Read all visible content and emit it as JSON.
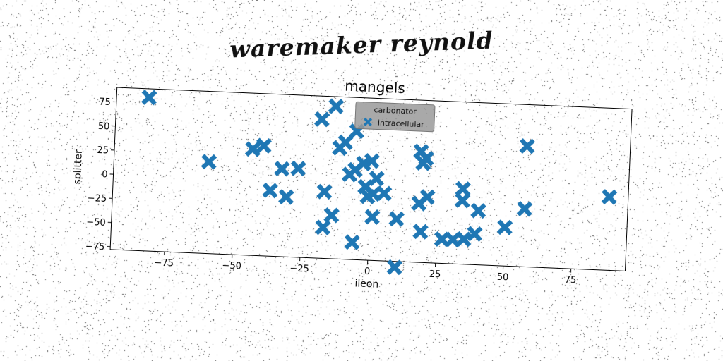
{
  "banner_title": "waremaker reynold",
  "colors": {
    "marker": "#1f77b4",
    "legend_bg": "#9a9a9a",
    "axis": "#000000"
  },
  "chart_data": {
    "type": "scatter",
    "title": "mangels",
    "xlabel": "ileon",
    "ylabel": "splitter",
    "xlim": [
      -95,
      95
    ],
    "ylim": [
      -78,
      90
    ],
    "xticks": [
      -75,
      -50,
      -25,
      0,
      25,
      50,
      75
    ],
    "yticks": [
      -75,
      -50,
      -25,
      0,
      25,
      50,
      75
    ],
    "grid": false,
    "legend": {
      "title": "carbonator",
      "placement": "top-center"
    },
    "series": [
      {
        "name": "intracellular",
        "marker": "X",
        "color": "#1f77b4",
        "points": [
          [
            -83,
            81
          ],
          [
            -14,
            80
          ],
          [
            -19,
            66
          ],
          [
            -6,
            55
          ],
          [
            -10,
            43
          ],
          [
            -12,
            37
          ],
          [
            -44,
            32
          ],
          [
            -40,
            36
          ],
          [
            -60,
            17
          ],
          [
            -33,
            13
          ],
          [
            -27,
            14
          ],
          [
            -8,
            10
          ],
          [
            -6,
            15
          ],
          [
            -3,
            22
          ],
          [
            0,
            25
          ],
          [
            2,
            7
          ],
          [
            -2,
            -2
          ],
          [
            -1,
            -12
          ],
          [
            1,
            -9
          ],
          [
            5,
            -8
          ],
          [
            -37,
            -10
          ],
          [
            -31,
            -16
          ],
          [
            -17,
            -9
          ],
          [
            -14,
            -33
          ],
          [
            -17,
            -46
          ],
          [
            -6,
            -60
          ],
          [
            1,
            -33
          ],
          [
            10,
            -34
          ],
          [
            10,
            -84
          ],
          [
            18,
            37
          ],
          [
            19,
            25
          ],
          [
            20,
            30
          ],
          [
            21,
            -10
          ],
          [
            18,
            -17
          ],
          [
            19,
            -46
          ],
          [
            27,
            -53
          ],
          [
            31,
            -53
          ],
          [
            35,
            -52
          ],
          [
            34,
            0
          ],
          [
            34,
            -12
          ],
          [
            40,
            -22
          ],
          [
            39,
            -46
          ],
          [
            50,
            -38
          ],
          [
            57,
            -18
          ],
          [
            57,
            47
          ],
          [
            88,
            -2
          ]
        ]
      }
    ]
  }
}
